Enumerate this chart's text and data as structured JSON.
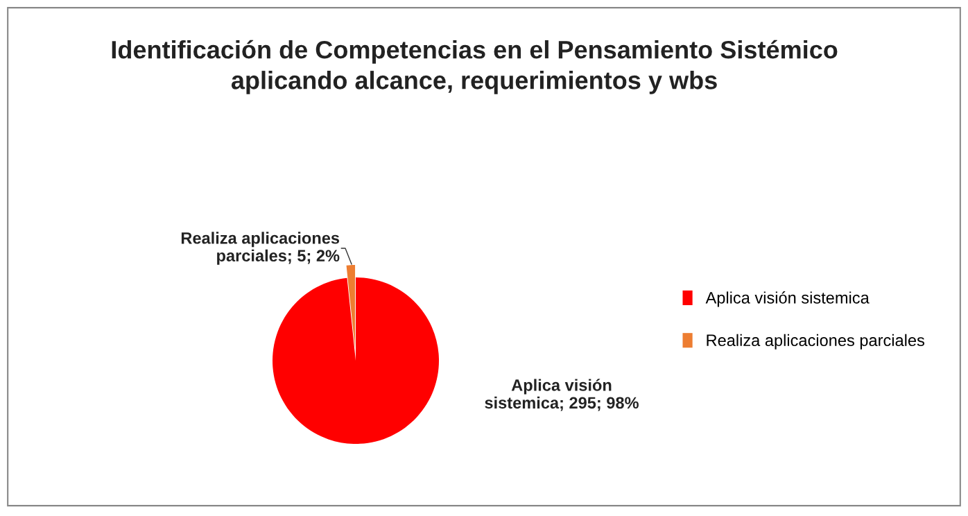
{
  "chart_data": {
    "type": "pie",
    "title": "Identificación de Competencias en el Pensamiento Sistémico\naplicando alcance, requerimientos y wbs",
    "categories": [
      "Aplica visión sistemica",
      "Realiza aplicaciones parciales"
    ],
    "values": [
      295,
      5
    ],
    "colors": [
      "#ff0000",
      "#ed7d31"
    ],
    "value_labels": [
      "Aplica visión\nsistemica; 295; 98%",
      "Realiza aplicaciones\nparciales; 5; 2%"
    ],
    "legend": "right"
  }
}
